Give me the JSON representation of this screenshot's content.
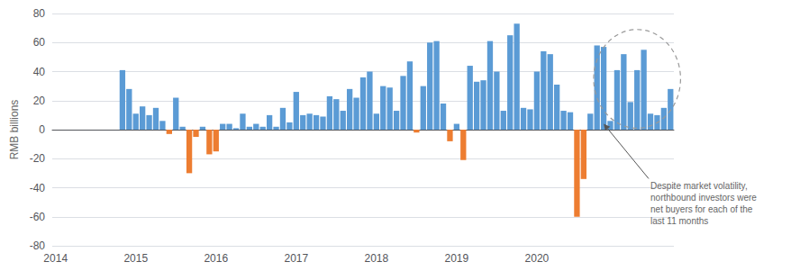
{
  "chart_data": {
    "type": "bar",
    "ylabel": "RMB billions",
    "annotation": "Despite market volatility,\nnorthbound investors were\nnet buyers for each of the\nlast 11 months",
    "categories": [
      "2014",
      null,
      null,
      null,
      null,
      null,
      null,
      null,
      null,
      null,
      null,
      null,
      "2015",
      null,
      null,
      null,
      null,
      null,
      null,
      null,
      null,
      null,
      null,
      null,
      "2016",
      null,
      null,
      null,
      null,
      null,
      null,
      null,
      null,
      null,
      null,
      null,
      "2017",
      null,
      null,
      null,
      null,
      null,
      null,
      null,
      null,
      null,
      null,
      null,
      "2018",
      null,
      null,
      null,
      null,
      null,
      null,
      null,
      null,
      null,
      null,
      null,
      "2019",
      null,
      null,
      null,
      null,
      null,
      null,
      null,
      null,
      null,
      null,
      null,
      "2020",
      null,
      null,
      null,
      null,
      null,
      null,
      null,
      null,
      null,
      null,
      null,
      null,
      null,
      null,
      null,
      null,
      null,
      null,
      null,
      null
    ],
    "values": [
      null,
      null,
      null,
      null,
      null,
      null,
      null,
      null,
      null,
      null,
      41,
      28,
      11,
      16,
      10,
      15,
      6,
      -3,
      22,
      2,
      -30,
      -5,
      2,
      -17,
      -15,
      4,
      4,
      1,
      11,
      2,
      4,
      2,
      10,
      2,
      15,
      5,
      26,
      10,
      11,
      10,
      9,
      23,
      21,
      13,
      28,
      22,
      36,
      40,
      11,
      30,
      29,
      13,
      37,
      47,
      -2,
      30,
      60,
      61,
      18,
      -8,
      4,
      -21,
      44,
      33,
      34,
      61,
      40,
      13,
      65,
      73,
      15,
      14,
      40,
      54,
      52,
      31,
      13,
      12,
      -60,
      -34,
      11,
      58,
      57,
      6,
      41,
      52,
      19,
      41,
      55,
      11,
      10,
      15,
      28
    ],
    "colors": [
      null,
      null,
      null,
      null,
      null,
      null,
      null,
      null,
      null,
      null,
      "#5B9BD5",
      "#5B9BD5",
      "#5B9BD5",
      "#5B9BD5",
      "#5B9BD5",
      "#5B9BD5",
      "#5B9BD5",
      "#ED7D31",
      "#5B9BD5",
      "#5B9BD5",
      "#ED7D31",
      "#ED7D31",
      "#5B9BD5",
      "#ED7D31",
      "#ED7D31",
      "#5B9BD5",
      "#5B9BD5",
      "#5B9BD5",
      "#5B9BD5",
      "#5B9BD5",
      "#5B9BD5",
      "#5B9BD5",
      "#5B9BD5",
      "#5B9BD5",
      "#5B9BD5",
      "#5B9BD5",
      "#5B9BD5",
      "#5B9BD5",
      "#5B9BD5",
      "#5B9BD5",
      "#5B9BD5",
      "#5B9BD5",
      "#5B9BD5",
      "#5B9BD5",
      "#5B9BD5",
      "#5B9BD5",
      "#5B9BD5",
      "#5B9BD5",
      "#5B9BD5",
      "#5B9BD5",
      "#5B9BD5",
      "#5B9BD5",
      "#5B9BD5",
      "#5B9BD5",
      "#ED7D31",
      "#5B9BD5",
      "#5B9BD5",
      "#5B9BD5",
      "#5B9BD5",
      "#ED7D31",
      "#5B9BD5",
      "#ED7D31",
      "#5B9BD5",
      "#5B9BD5",
      "#5B9BD5",
      "#5B9BD5",
      "#5B9BD5",
      "#5B9BD5",
      "#5B9BD5",
      "#5B9BD5",
      "#5B9BD5",
      "#5B9BD5",
      "#5B9BD5",
      "#5B9BD5",
      "#5B9BD5",
      "#5B9BD5",
      "#5B9BD5",
      "#5B9BD5",
      "#ED7D31",
      "#ED7D31",
      "#5B9BD5",
      "#5B9BD5",
      "#5B9BD5",
      "#5B9BD5",
      "#5B9BD5",
      "#5B9BD5",
      "#5B9BD5",
      "#5B9BD5",
      "#5B9BD5",
      "#5B9BD5",
      "#5B9BD5",
      "#5B9BD5",
      "#5B9BD5"
    ],
    "ylim": [
      -80,
      80
    ],
    "yticks": [
      -80,
      -60,
      -40,
      -20,
      0,
      20,
      40,
      60,
      80
    ],
    "grid": true
  }
}
